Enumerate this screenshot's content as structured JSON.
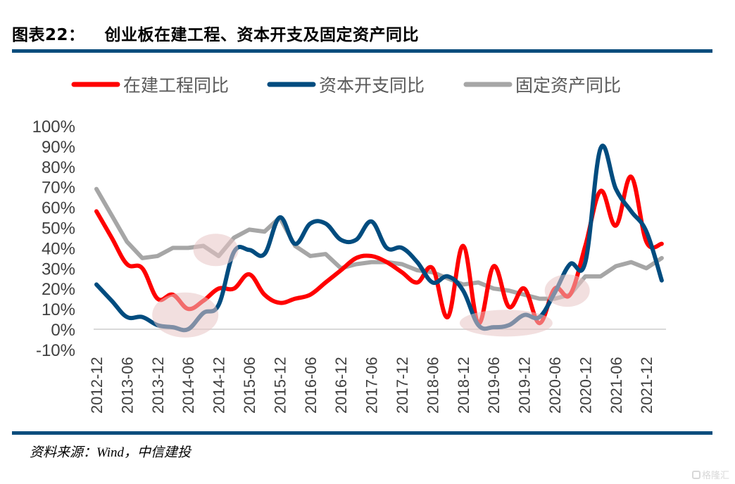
{
  "header": {
    "figure_label": "图表22：",
    "title": "创业板在建工程、资本开支及固定资产同比"
  },
  "footer": {
    "source": "资料来源：Wind，中信建投",
    "watermark": "格隆汇"
  },
  "chart_data": {
    "type": "line",
    "title": "创业板在建工程、资本开支及固定资产同比",
    "xlabel": "",
    "ylabel": "",
    "ylim": [
      -10,
      100
    ],
    "y_unit": "%",
    "y_ticks": [
      "100%",
      "90%",
      "80%",
      "70%",
      "60%",
      "50%",
      "40%",
      "30%",
      "20%",
      "10%",
      "0%",
      "-10%"
    ],
    "y_tick_values": [
      100,
      90,
      80,
      70,
      60,
      50,
      40,
      30,
      20,
      10,
      0,
      -10
    ],
    "x_tick_labels": [
      "2012-12",
      "2013-06",
      "2013-12",
      "2014-06",
      "2014-12",
      "2015-06",
      "2015-12",
      "2016-06",
      "2016-12",
      "2017-06",
      "2017-12",
      "2018-06",
      "2018-12",
      "2019-06",
      "2019-12",
      "2020-06",
      "2020-12",
      "2021-06",
      "2021-12"
    ],
    "x": [
      "2012-12",
      "2013-03",
      "2013-06",
      "2013-09",
      "2013-12",
      "2014-03",
      "2014-06",
      "2014-09",
      "2014-12",
      "2015-03",
      "2015-06",
      "2015-09",
      "2015-12",
      "2016-03",
      "2016-06",
      "2016-09",
      "2016-12",
      "2017-03",
      "2017-06",
      "2017-09",
      "2017-12",
      "2018-03",
      "2018-06",
      "2018-09",
      "2018-12",
      "2019-03",
      "2019-06",
      "2019-09",
      "2019-12",
      "2020-03",
      "2020-06",
      "2020-09",
      "2020-12",
      "2021-03",
      "2021-06",
      "2021-09",
      "2021-12",
      "2022-03"
    ],
    "legend_position": "top",
    "grid": false,
    "series": [
      {
        "name": "在建工程同比",
        "color": "#FF0000",
        "smooth": true,
        "values": [
          58,
          45,
          32,
          30,
          15,
          17,
          10,
          14,
          20,
          20,
          27,
          17,
          13,
          15,
          17,
          23,
          29,
          35,
          36,
          33,
          28,
          23,
          30,
          6,
          41,
          3,
          31,
          11,
          20,
          3,
          20,
          17,
          41,
          68,
          51,
          75,
          43,
          42
        ]
      },
      {
        "name": "资本开支同比",
        "color": "#004C7F",
        "smooth": true,
        "values": [
          22,
          14,
          6,
          6,
          2,
          1,
          0,
          8,
          12,
          38,
          39,
          37,
          55,
          42,
          52,
          52,
          44,
          44,
          53,
          40,
          40,
          33,
          23,
          26,
          19,
          2,
          1,
          2,
          7,
          6,
          18,
          32,
          33,
          89,
          69,
          58,
          48,
          24
        ]
      },
      {
        "name": "固定资产同比",
        "color": "#A6A6A6",
        "smooth": false,
        "values": [
          69,
          56,
          43,
          35,
          36,
          40,
          40,
          41,
          36,
          45,
          49,
          48,
          55,
          41,
          36,
          37,
          30,
          32,
          33,
          33,
          32,
          29,
          28,
          25,
          22,
          23,
          20,
          19,
          17,
          15,
          15,
          17,
          26,
          26,
          31,
          33,
          30,
          35
        ]
      }
    ],
    "annotations": [
      {
        "type": "highlight-ellipse",
        "label": "2014-06 trough",
        "color": "#E8C4C4"
      },
      {
        "type": "highlight-ellipse",
        "label": "2014-12 fixed-asset dip",
        "color": "#E8C4C4"
      },
      {
        "type": "highlight-ellipse",
        "label": "2019 trough",
        "color": "#E8C4C4"
      },
      {
        "type": "highlight-ellipse",
        "label": "2020-06 turning point",
        "color": "#E8C4C4"
      }
    ]
  }
}
